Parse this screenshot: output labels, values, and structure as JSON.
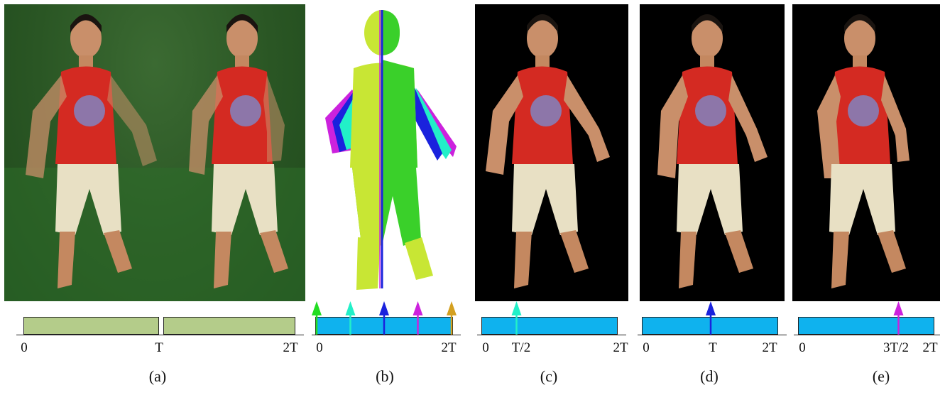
{
  "panels": {
    "a": {
      "caption": "(a)",
      "ticks": [
        "0",
        "T",
        "2T"
      ]
    },
    "b": {
      "caption": "(b)",
      "ticks": [
        "0",
        "2T"
      ]
    },
    "c": {
      "caption": "(c)",
      "ticks": [
        "0",
        "T/2",
        "2T"
      ]
    },
    "d": {
      "caption": "(d)",
      "ticks": [
        "0",
        "T",
        "2T"
      ]
    },
    "e": {
      "caption": "(e)",
      "ticks": [
        "0",
        "3T/2",
        "2T"
      ]
    }
  },
  "colors": {
    "green_screen": "#2a5624",
    "mesh_yellow": "#c8e634",
    "mesh_green": "#3ad02a",
    "timeline_green": "#b4cc8a",
    "timeline_blue": "#0fb2ee",
    "marker_green": "#22dd22",
    "marker_cyan": "#22f0c8",
    "marker_blue": "#1a22dd",
    "marker_magenta": "#cc22dd",
    "marker_gold": "#d4a020"
  },
  "markers": {
    "b": [
      {
        "time": 0,
        "color": "marker_green"
      },
      {
        "time": 0.5,
        "color": "marker_cyan"
      },
      {
        "time": 1.0,
        "color": "marker_blue"
      },
      {
        "time": 1.5,
        "color": "marker_magenta"
      },
      {
        "time": 2.0,
        "color": "marker_gold"
      }
    ],
    "c": {
      "time": 0.5,
      "color": "marker_cyan"
    },
    "d": {
      "time": 1.0,
      "color": "marker_blue"
    },
    "e": {
      "time": 1.5,
      "color": "marker_magenta"
    }
  }
}
